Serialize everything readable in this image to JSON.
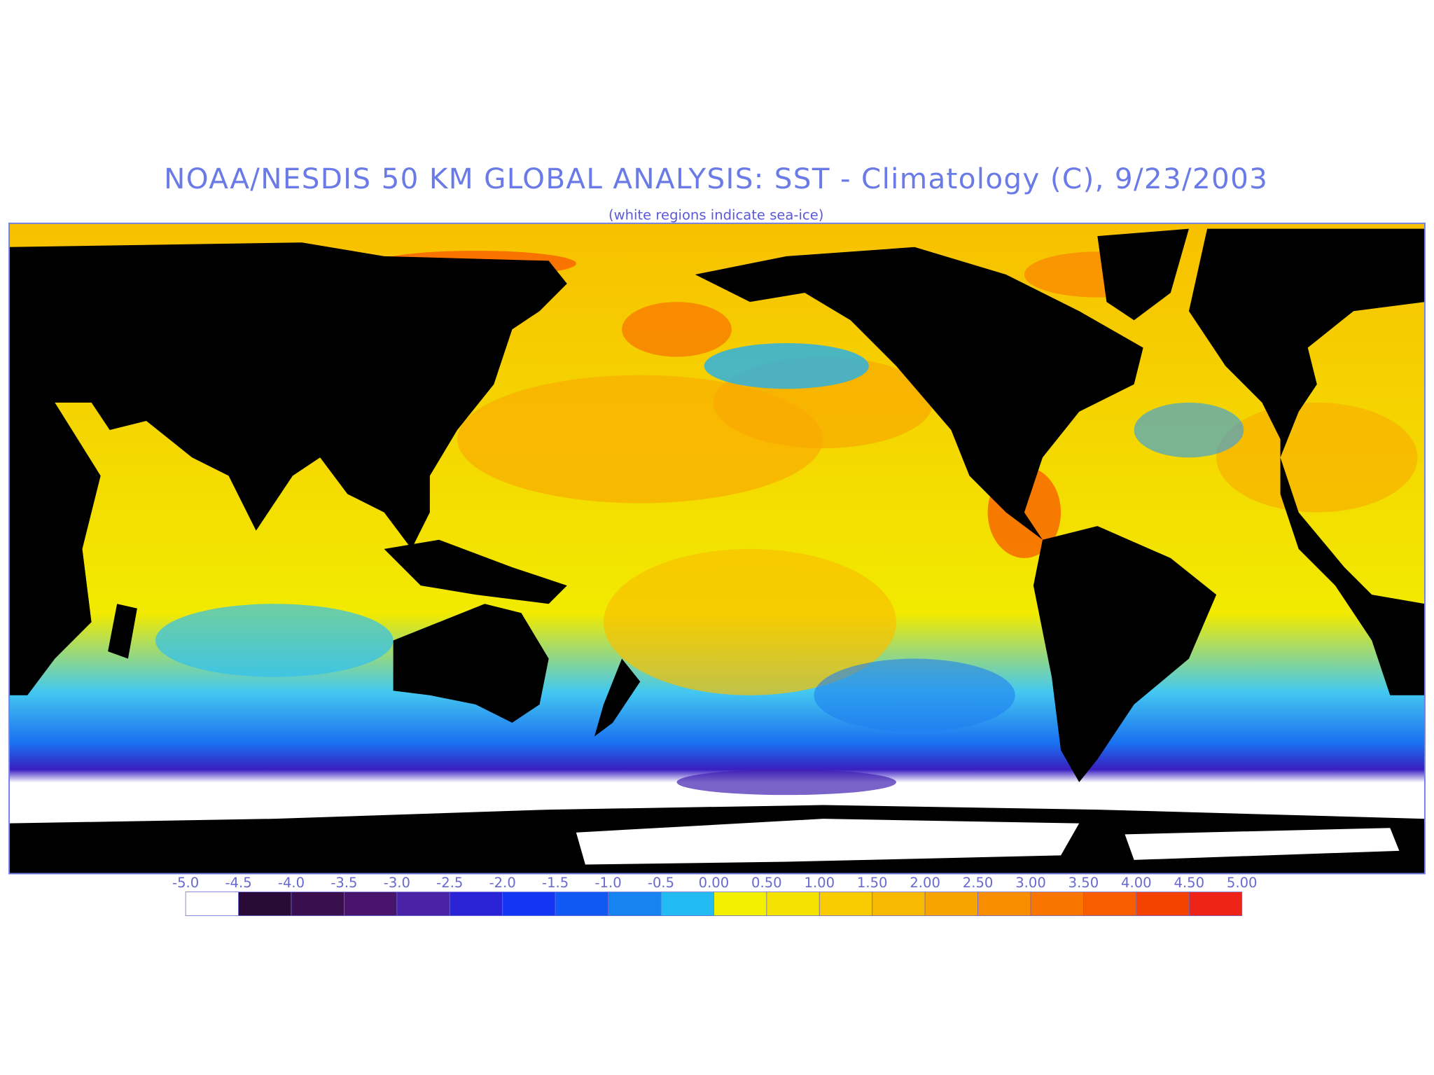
{
  "header": {
    "title": "NOAA/NESDIS 50 KM GLOBAL ANALYSIS: SST - Climatology (C), 9/23/2003",
    "subtitle": "(white regions indicate sea-ice)"
  },
  "colorbar": {
    "labels": [
      "-5.0",
      "-4.5",
      "-4.0",
      "-3.5",
      "-3.0",
      "-2.5",
      "-2.0",
      "-1.5",
      "-1.0",
      "-0.5",
      "0.00",
      "0.50",
      "1.00",
      "1.50",
      "2.00",
      "2.50",
      "3.00",
      "3.50",
      "4.00",
      "4.50",
      "5.00"
    ],
    "colors": [
      "#ffffff",
      "#2a0a36",
      "#3a0f4e",
      "#48146c",
      "#4a22a6",
      "#2a24d6",
      "#1236f2",
      "#1258f2",
      "#1684f0",
      "#22bcf2",
      "#f2f000",
      "#f6e200",
      "#f8cc00",
      "#f8ba00",
      "#f8a400",
      "#f88e00",
      "#f87600",
      "#f85e00",
      "#f64200",
      "#ee2418"
    ]
  }
}
